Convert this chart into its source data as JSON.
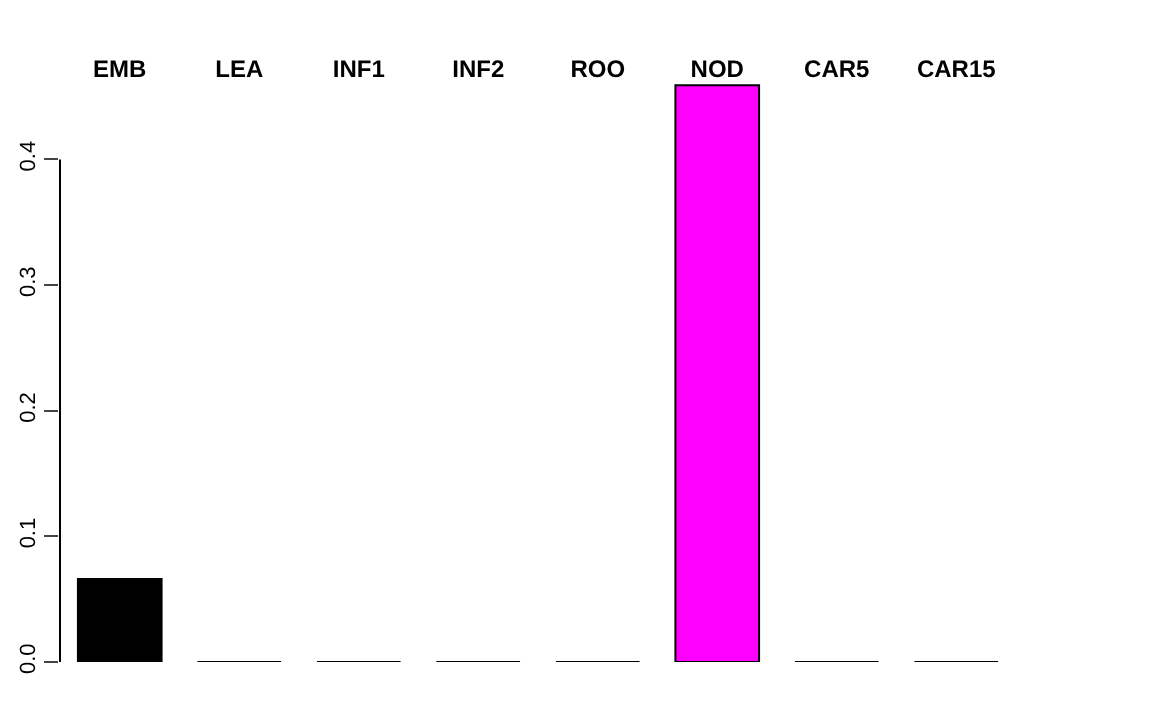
{
  "chart_data": {
    "type": "bar",
    "categories": [
      "EMB",
      "LEA",
      "INF1",
      "INF2",
      "ROO",
      "NOD",
      "CAR5",
      "CAR15"
    ],
    "values": [
      0.066,
      0,
      0,
      0,
      0,
      0.459,
      0,
      0
    ],
    "colors": [
      "#000000",
      "#000000",
      "#000000",
      "#000000",
      "#000000",
      "#ff00ff",
      "#000000",
      "#000000"
    ],
    "ylim": [
      0,
      0.46
    ],
    "yticks": [
      {
        "value": 0,
        "label": "0.0"
      },
      0.1,
      0.2,
      0.3,
      0.4
    ],
    "grid": false
  }
}
